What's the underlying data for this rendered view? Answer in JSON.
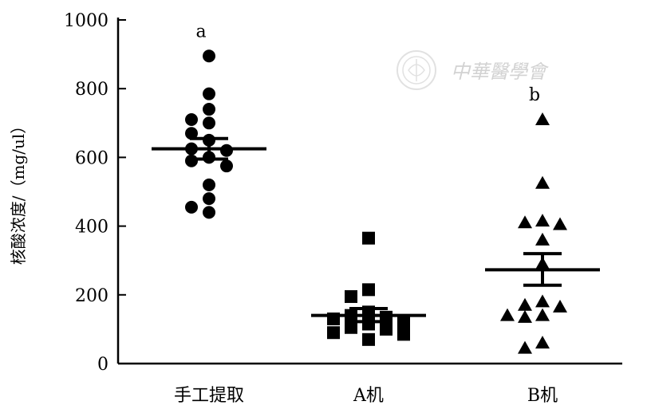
{
  "chart_data": {
    "type": "scatter",
    "ylabel": "核酸浓度/（mg/ul）",
    "ylim": [
      0,
      1000
    ],
    "yticks": [
      0,
      200,
      400,
      600,
      800,
      1000
    ],
    "categories": [
      "手工提取",
      "A机",
      "B机"
    ],
    "series": [
      {
        "category": "手工提取",
        "marker": "circle",
        "values": [
          895,
          785,
          740,
          710,
          700,
          670,
          650,
          625,
          620,
          600,
          590,
          575,
          520,
          480,
          455,
          440
        ],
        "mean": 625,
        "sem_upper": 655,
        "sem_lower": 595,
        "significance": "a"
      },
      {
        "category": "A机",
        "marker": "square",
        "values": [
          365,
          215,
          195,
          150,
          140,
          135,
          130,
          120,
          115,
          105,
          100,
          90,
          85,
          70
        ],
        "mean": 140,
        "sem_upper": 160,
        "sem_lower": 122,
        "significance": ""
      },
      {
        "category": "B机",
        "marker": "triangle",
        "values": [
          710,
          525,
          415,
          410,
          405,
          360,
          290,
          180,
          170,
          165,
          140,
          140,
          135,
          60,
          45
        ],
        "mean": 273,
        "sem_upper": 320,
        "sem_lower": 228,
        "significance": "b"
      }
    ]
  },
  "watermark": {
    "text": "中華醫學會",
    "icon": "chinese-medical-association-seal"
  }
}
